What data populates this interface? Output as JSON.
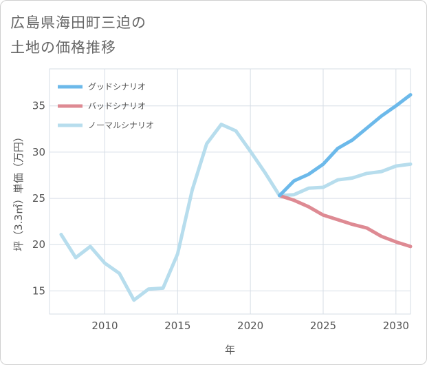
{
  "title_lines": [
    "広島県海田町三迫の",
    "土地の価格推移"
  ],
  "chart_data": {
    "type": "line",
    "xlabel": "年",
    "ylabel": "坪（3.3㎡）単価（万円）",
    "xlim": [
      2006.2,
      2031
    ],
    "ylim": [
      12.5,
      39
    ],
    "xticks": [
      2010,
      2015,
      2020,
      2025,
      2030
    ],
    "yticks": [
      15,
      20,
      25,
      30,
      35
    ],
    "grid": true,
    "legend_position": "top-left",
    "series": [
      {
        "name": "グッドシナリオ",
        "color": "#6cb9ea",
        "x": [
          2022,
          2023,
          2024,
          2025,
          2026,
          2027,
          2028,
          2029,
          2030,
          2031
        ],
        "values": [
          25.3,
          26.9,
          27.6,
          28.7,
          30.4,
          31.3,
          32.6,
          33.9,
          35.0,
          36.2
        ]
      },
      {
        "name": "バッドシナリオ",
        "color": "#de8a93",
        "x": [
          2022,
          2023,
          2024,
          2025,
          2026,
          2027,
          2028,
          2029,
          2030,
          2031
        ],
        "values": [
          25.3,
          24.8,
          24.1,
          23.2,
          22.7,
          22.2,
          21.8,
          20.9,
          20.3,
          19.8
        ]
      },
      {
        "name": "ノーマルシナリオ",
        "color": "#b7dded",
        "x": [
          2007,
          2008,
          2009,
          2010,
          2011,
          2012,
          2013,
          2014,
          2015,
          2016,
          2017,
          2018,
          2019,
          2020,
          2021,
          2022,
          2023,
          2024,
          2025,
          2026,
          2027,
          2028,
          2029,
          2030,
          2031
        ],
        "values": [
          21.1,
          18.6,
          19.8,
          18.0,
          16.9,
          14.0,
          15.2,
          15.3,
          19.0,
          25.9,
          30.9,
          33.0,
          32.3,
          30.1,
          27.8,
          25.3,
          25.4,
          26.1,
          26.2,
          27.0,
          27.2,
          27.7,
          27.9,
          28.5,
          28.7
        ]
      }
    ]
  }
}
